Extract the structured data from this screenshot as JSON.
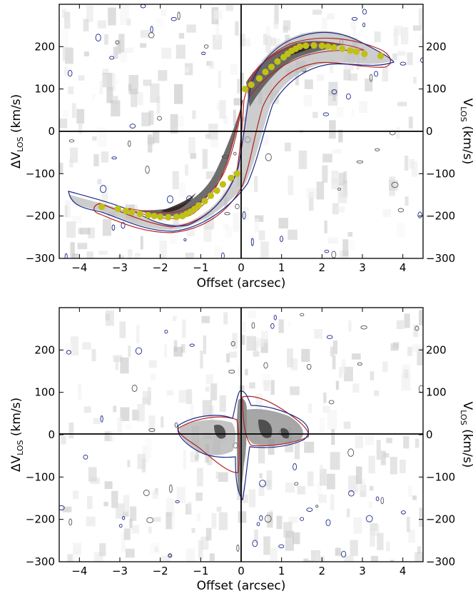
{
  "chart_data": [
    {
      "type": "heatmap",
      "panel": "top",
      "xlabel": "Offset (arcsec)",
      "ylabel_left": {
        "prefix": "ΔV",
        "sub": "LOS",
        "suffix": " (km/s)"
      },
      "ylabel_right": {
        "prefix": "V",
        "sub": "LOS",
        "suffix": " (km/s)"
      },
      "xlim": [
        -4.5,
        4.5
      ],
      "ylim": [
        -300,
        300
      ],
      "xticks": [
        -4,
        -3,
        -2,
        -1,
        0,
        1,
        2,
        3,
        4
      ],
      "yticks": [
        -300,
        -200,
        -100,
        0,
        100,
        200
      ],
      "x_tick_labels": [
        "−4",
        "−3",
        "−2",
        "−1",
        "0",
        "1",
        "2",
        "3",
        "4"
      ],
      "y_tick_labels": [
        "−300",
        "−200",
        "−100",
        "0",
        "100",
        "200"
      ],
      "ridge": [
        [
          -0.5,
          -160
        ],
        [
          -0.8,
          -185
        ],
        [
          -1.2,
          -200
        ],
        [
          -1.6,
          -205
        ],
        [
          -2.0,
          -200
        ],
        [
          -2.5,
          -192
        ],
        [
          -3.0,
          -182
        ],
        [
          -3.5,
          -175
        ]
      ],
      "points": {
        "color": "#c0c015",
        "x": [
          -3.45,
          -3.05,
          -2.85,
          -2.7,
          -2.5,
          -2.3,
          -2.15,
          -2.0,
          -1.8,
          -1.6,
          -1.45,
          -1.35,
          -1.25,
          -1.15,
          -1.05,
          -0.9,
          -0.75,
          -0.6,
          -0.45,
          -0.25,
          -0.1,
          0.1,
          0.25,
          0.45,
          0.6,
          0.75,
          0.9,
          1.05,
          1.15,
          1.25,
          1.35,
          1.45,
          1.6,
          1.8,
          2.0,
          2.15,
          2.3,
          2.5,
          2.7,
          2.85,
          3.05,
          3.45
        ],
        "y": [
          -178,
          -183,
          -188,
          -191,
          -195,
          -198,
          -200,
          -202,
          -203,
          -202,
          -200,
          -195,
          -190,
          -183,
          -175,
          -165,
          -152,
          -140,
          -125,
          -110,
          -100,
          100,
          110,
          125,
          140,
          152,
          165,
          175,
          183,
          190,
          195,
          200,
          202,
          203,
          202,
          200,
          198,
          195,
          191,
          188,
          183,
          178
        ]
      },
      "model_contour_color": "#b22222",
      "data_contour_color": "#1c2a8c"
    },
    {
      "type": "heatmap",
      "panel": "bottom",
      "xlabel": "Offset (arcsec)",
      "ylabel_left": {
        "prefix": "ΔV",
        "sub": "LOS",
        "suffix": " (km/s)"
      },
      "ylabel_right": {
        "prefix": "V",
        "sub": "LOS",
        "suffix": " (km/s)"
      },
      "xlim": [
        -4.5,
        4.5
      ],
      "ylim": [
        -300,
        300
      ],
      "xticks": [
        -4,
        -3,
        -2,
        -1,
        0,
        1,
        2,
        3,
        4
      ],
      "yticks": [
        -300,
        -200,
        -100,
        0,
        100,
        200
      ],
      "x_tick_labels": [
        "−4",
        "−3",
        "−2",
        "−1",
        "0",
        "1",
        "2",
        "3",
        "4"
      ],
      "y_tick_labels": [
        "−300",
        "−200",
        "−100",
        "0",
        "100",
        "200"
      ],
      "model_contour_color": "#b22222",
      "data_contour_color": "#1c2a8c"
    }
  ]
}
